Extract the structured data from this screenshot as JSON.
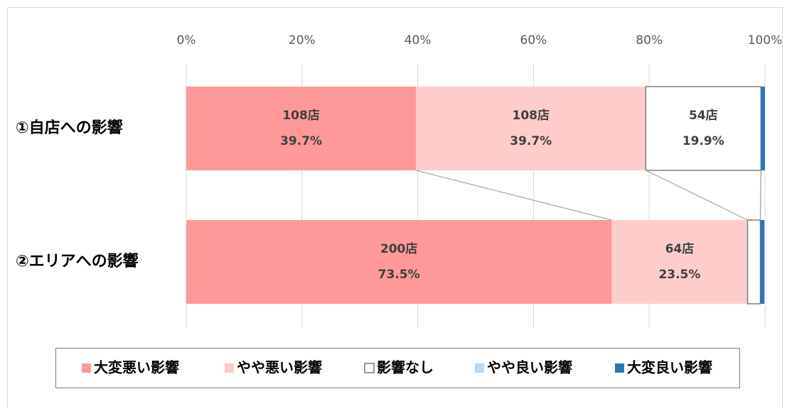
{
  "chart_data": {
    "type": "stacked-bar-horizontal-100",
    "categories": [
      "①自店への影響",
      "②エリアへの影響"
    ],
    "xlim": [
      0,
      100
    ],
    "xticks": [
      {
        "value": 0,
        "label": "0%"
      },
      {
        "value": 20,
        "label": "20%"
      },
      {
        "value": 40,
        "label": "40%"
      },
      {
        "value": 60,
        "label": "60%"
      },
      {
        "value": 80,
        "label": "80%"
      },
      {
        "value": 100,
        "label": "100%"
      }
    ],
    "grid": true,
    "legend": "bottom",
    "series": [
      {
        "name": "大変悪い影響",
        "color": "#ff9999",
        "values": [
          39.7,
          73.5
        ],
        "value_labels": [
          "39.7%",
          "73.5%"
        ],
        "count_labels": [
          "108店",
          "200店"
        ]
      },
      {
        "name": "やや悪い影響",
        "color": "#ffcccc",
        "values": [
          39.7,
          23.5
        ],
        "value_labels": [
          "39.7%",
          "23.5%"
        ],
        "count_labels": [
          "108店",
          "64店"
        ]
      },
      {
        "name": "影響なし",
        "color": "#ffffff",
        "values": [
          19.9,
          2.2
        ],
        "value_labels": [
          "19.9%",
          null
        ],
        "count_labels": [
          "54店",
          null
        ]
      },
      {
        "name": "やや良い影響",
        "color": "#bdd7ee",
        "values": [
          0,
          0
        ],
        "value_labels": [
          null,
          null
        ],
        "count_labels": [
          null,
          null
        ]
      },
      {
        "name": "大変良い影響",
        "color": "#2e75b6",
        "values": [
          0.7,
          0.7
        ],
        "value_labels": [
          null,
          null
        ],
        "count_labels": [
          null,
          null
        ]
      }
    ]
  }
}
